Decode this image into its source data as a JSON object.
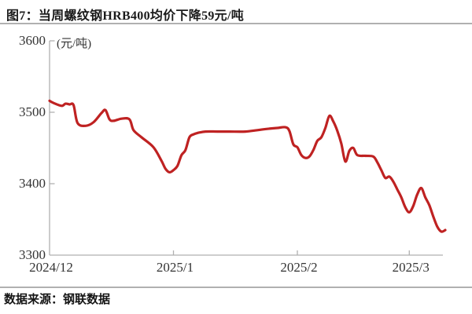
{
  "figure": {
    "title": "图7：当周螺纹钢HRB400均价下降59元/吨",
    "source": "数据来源：钢联数据"
  },
  "chart_data": {
    "type": "line",
    "title": "当周螺纹钢HRB400均价下降59元/吨",
    "unit_label": "(元/吨)",
    "ylabel": "元/吨",
    "ylim": [
      3300,
      3600
    ],
    "y_ticks": [
      3600,
      3500,
      3400,
      3300
    ],
    "x_tick_labels": [
      "2024/12",
      "2025/1",
      "2025/2",
      "2025/3"
    ],
    "x_tick_days": [
      0,
      31,
      62,
      90
    ],
    "x_range_days": [
      0,
      99
    ],
    "grid": false,
    "legend": "none",
    "line_color": "#bf2222",
    "axis_color": "#b0b0b0",
    "points": [
      [
        0,
        3516
      ],
      [
        1,
        3513
      ],
      [
        3,
        3509
      ],
      [
        4,
        3512
      ],
      [
        5,
        3511
      ],
      [
        6,
        3510
      ],
      [
        7,
        3485
      ],
      [
        9,
        3481
      ],
      [
        11,
        3486
      ],
      [
        13,
        3499
      ],
      [
        14,
        3503
      ],
      [
        15,
        3490
      ],
      [
        16,
        3488
      ],
      [
        18,
        3491
      ],
      [
        20,
        3490
      ],
      [
        21,
        3475
      ],
      [
        23,
        3465
      ],
      [
        26,
        3451
      ],
      [
        28,
        3432
      ],
      [
        29,
        3421
      ],
      [
        30,
        3416
      ],
      [
        31,
        3419
      ],
      [
        32,
        3425
      ],
      [
        33,
        3440
      ],
      [
        34,
        3447
      ],
      [
        35,
        3465
      ],
      [
        36,
        3469
      ],
      [
        37,
        3471
      ],
      [
        39,
        3473
      ],
      [
        42,
        3473
      ],
      [
        45,
        3473
      ],
      [
        49,
        3473
      ],
      [
        52,
        3475
      ],
      [
        55,
        3477
      ],
      [
        57,
        3478
      ],
      [
        59,
        3479
      ],
      [
        60,
        3474
      ],
      [
        61,
        3455
      ],
      [
        62,
        3451
      ],
      [
        63,
        3440
      ],
      [
        64,
        3436
      ],
      [
        65,
        3438
      ],
      [
        66,
        3447
      ],
      [
        67,
        3460
      ],
      [
        68,
        3465
      ],
      [
        69,
        3478
      ],
      [
        70,
        3495
      ],
      [
        71,
        3487
      ],
      [
        72,
        3474
      ],
      [
        73,
        3456
      ],
      [
        74,
        3431
      ],
      [
        75,
        3446
      ],
      [
        76,
        3450
      ],
      [
        77,
        3440
      ],
      [
        79,
        3439
      ],
      [
        81,
        3438
      ],
      [
        82,
        3430
      ],
      [
        83,
        3419
      ],
      [
        84,
        3408
      ],
      [
        85,
        3410
      ],
      [
        86,
        3403
      ],
      [
        87,
        3392
      ],
      [
        88,
        3381
      ],
      [
        89,
        3367
      ],
      [
        90,
        3360
      ],
      [
        91,
        3369
      ],
      [
        92,
        3385
      ],
      [
        93,
        3394
      ],
      [
        94,
        3381
      ],
      [
        95,
        3370
      ],
      [
        96,
        3354
      ],
      [
        97,
        3340
      ],
      [
        98,
        3333
      ],
      [
        99,
        3335
      ]
    ]
  }
}
